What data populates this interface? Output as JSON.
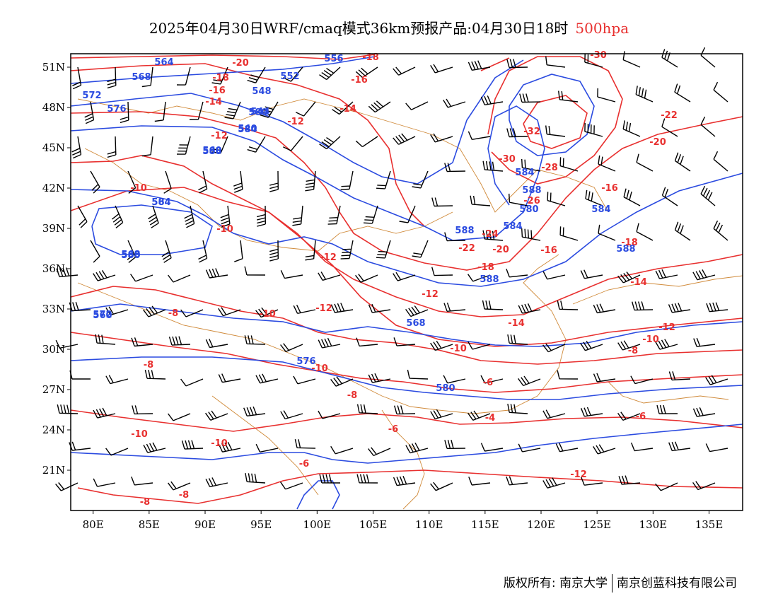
{
  "title": {
    "main": "2025年04月30日WRF/cmaq模式36km预报产品:04月30日18时",
    "level": "500hpa"
  },
  "colors": {
    "height_contour": "#2b4be0",
    "temperature_contour": "#e8302f",
    "border": "#d08a3a",
    "wind_barb": "#000000"
  },
  "axes": {
    "x_ticks": [
      "80E",
      "85E",
      "90E",
      "95E",
      "100E",
      "105E",
      "110E",
      "115E",
      "120E",
      "125E",
      "130E",
      "135E"
    ],
    "y_ticks": [
      "51N",
      "48N",
      "45N",
      "42N",
      "39N",
      "36N",
      "33N",
      "30N",
      "27N",
      "24N",
      "21N"
    ],
    "lon_range": [
      78,
      138
    ],
    "lat_range": [
      18,
      52
    ]
  },
  "height_labels": [
    "564",
    "568",
    "572",
    "576",
    "580",
    "584",
    "588",
    "584",
    "580",
    "560",
    "556",
    "552",
    "548",
    "544",
    "540",
    "560",
    "564",
    "568",
    "572",
    "576",
    "580",
    "584",
    "588",
    "580",
    "584",
    "588",
    "568",
    "588",
    "584",
    "588"
  ],
  "temperature_labels": [
    "-20",
    "-18",
    "-16",
    "-14",
    "-12",
    "-18",
    "-16",
    "-14",
    "-12",
    "-10",
    "-12",
    "-10",
    "-12",
    "-8",
    "-10",
    "-8",
    "-10",
    "-8",
    "-6",
    "-10",
    "-10",
    "-8",
    "-6",
    "-8",
    "-10",
    "-12",
    "-14",
    "-16",
    "-18",
    "-20",
    "-22",
    "-24",
    "-26",
    "-28",
    "-30",
    "-32",
    "-30",
    "-22",
    "-20",
    "-18",
    "-16",
    "-14",
    "-12",
    "-10",
    "-8",
    "-6",
    "-4",
    "-12",
    "-6"
  ],
  "footer": {
    "left": "版权所有: 南京大学",
    "right": "南京创蓝科技有限公司"
  }
}
